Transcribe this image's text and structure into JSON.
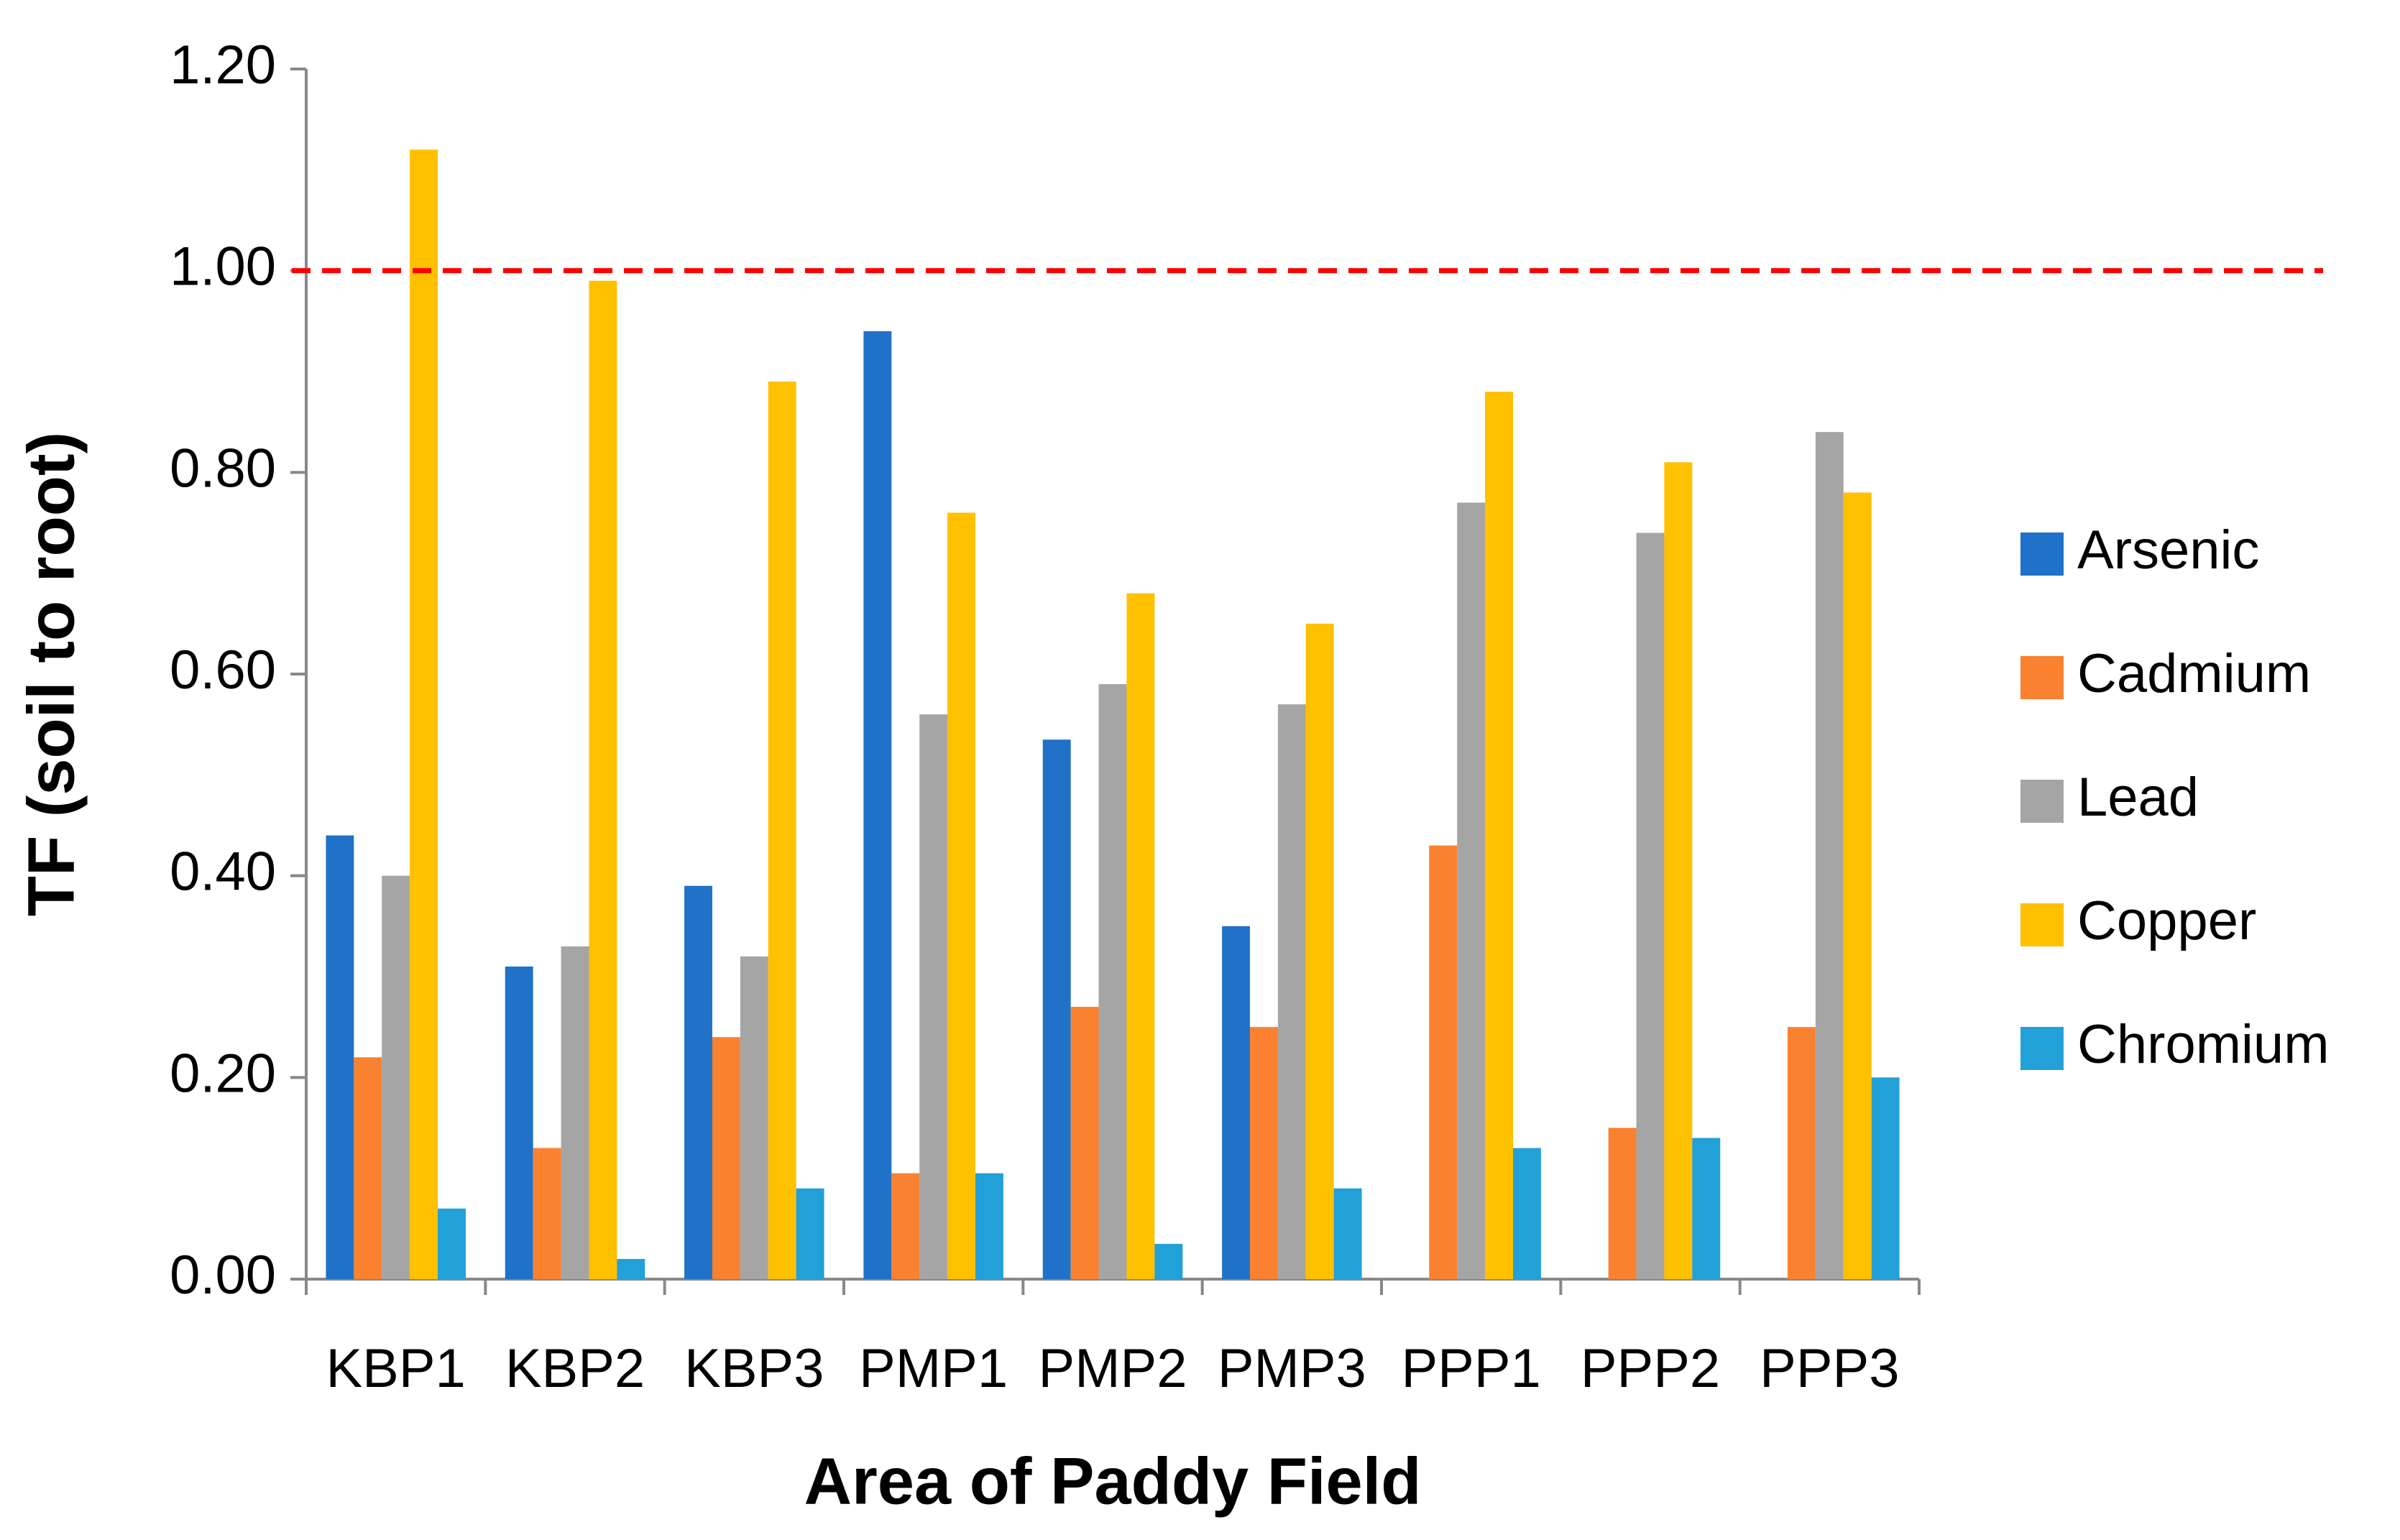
{
  "chart_data": {
    "type": "bar",
    "x_label": "Area of Paddy Field",
    "y_label": "TF (soil to root)",
    "categories": [
      "KBP1",
      "KBP2",
      "KBP3",
      "PMP1",
      "PMP2",
      "PMP3",
      "PPP1",
      "PPP2",
      "PPP3"
    ],
    "series": [
      {
        "name": "Arsenic",
        "color": "#1f72c8",
        "values": [
          0.44,
          0.31,
          0.39,
          0.94,
          0.535,
          0.35,
          null,
          null,
          null
        ]
      },
      {
        "name": "Cadmium",
        "color": "#f98130",
        "values": [
          0.22,
          0.13,
          0.24,
          0.105,
          0.27,
          0.25,
          0.43,
          0.15,
          0.25
        ]
      },
      {
        "name": "Lead",
        "color": "#a5a5a5",
        "values": [
          0.4,
          0.33,
          0.32,
          0.56,
          0.59,
          0.57,
          0.77,
          0.74,
          0.84
        ]
      },
      {
        "name": "Copper",
        "color": "#ffc000",
        "values": [
          1.12,
          0.99,
          0.89,
          0.76,
          0.68,
          0.65,
          0.88,
          0.81,
          0.78
        ]
      },
      {
        "name": "Chromium",
        "color": "#22a0d8",
        "values": [
          0.07,
          0.02,
          0.09,
          0.105,
          0.035,
          0.09,
          0.13,
          0.14,
          0.2
        ]
      }
    ],
    "ylim": [
      0,
      1.2
    ],
    "yticks": [
      {
        "value": 0,
        "label": "0.00"
      },
      {
        "value": 0.2,
        "label": "0.20"
      },
      {
        "value": 0.4,
        "label": "0.40"
      },
      {
        "value": 0.6,
        "label": "0.60"
      },
      {
        "value": 0.8,
        "label": "0.80"
      },
      {
        "value": 1.0,
        "label": "1.00"
      },
      {
        "value": 1.2,
        "label": "1.20"
      }
    ],
    "reference_line": {
      "value": 1.0,
      "color": "#ff0000"
    },
    "legend": "right"
  }
}
